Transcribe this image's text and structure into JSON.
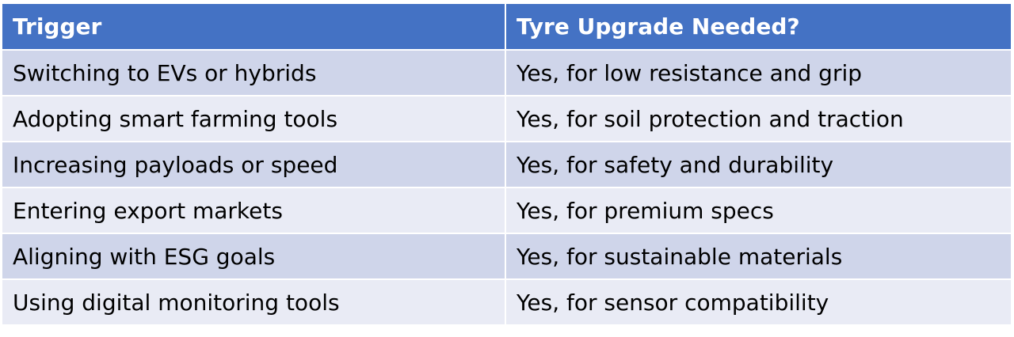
{
  "table": {
    "header": [
      "Trigger",
      "Tyre Upgrade Needed?"
    ],
    "rows": [
      [
        "Switching to EVs or hybrids",
        "Yes, for low resistance and grip"
      ],
      [
        "Adopting smart farming tools",
        "Yes, for soil protection and traction"
      ],
      [
        "Increasing payloads or speed",
        "Yes, for safety and durability"
      ],
      [
        "Entering export markets",
        "Yes, for premium specs"
      ],
      [
        "Aligning with ESG goals",
        "Yes, for sustainable materials"
      ],
      [
        "Using digital monitoring tools",
        "Yes, for sensor compatibility"
      ]
    ]
  }
}
